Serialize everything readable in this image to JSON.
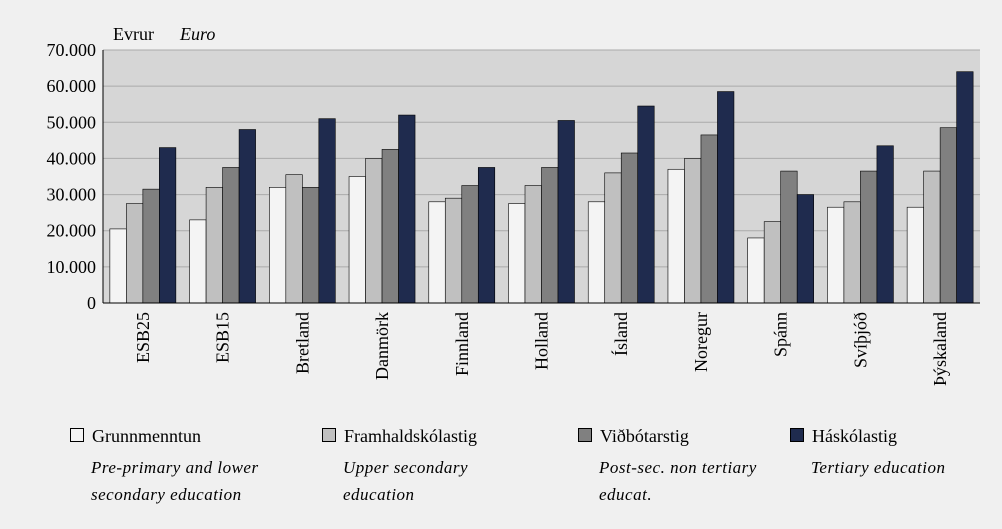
{
  "chart_data": {
    "type": "bar",
    "y_label": "Evrur",
    "y_label_en": "Euro",
    "categories": [
      "ESB25",
      "ESB15",
      "Bretland",
      "Danmörk",
      "Finnland",
      "Holland",
      "Ísland",
      "Noregur",
      "Spánn",
      "Svíþjóð",
      "Þýskaland"
    ],
    "series": [
      {
        "name": "Grunnmenntun",
        "name_en": "Pre-primary and lower secondary education",
        "color": "#f4f4f4",
        "values": [
          20500,
          23000,
          32000,
          35000,
          28000,
          27500,
          28000,
          37000,
          18000,
          26500,
          26500
        ]
      },
      {
        "name": "Framhaldskólastig",
        "name_en": "Upper secondary education",
        "color": "#c0c0c0",
        "values": [
          27500,
          32000,
          35500,
          40000,
          29000,
          32500,
          36000,
          40000,
          22500,
          28000,
          36500
        ]
      },
      {
        "name": "Viðbótarstig",
        "name_en": "Post-sec. non tertiary educat.",
        "color": "#808080",
        "values": [
          31500,
          37500,
          32000,
          42500,
          32500,
          37500,
          41500,
          46500,
          36500,
          36500,
          48500
        ]
      },
      {
        "name": "Háskólastig",
        "name_en": "Tertiary education",
        "color": "#1f2b4e",
        "values": [
          43000,
          48000,
          51000,
          52000,
          37500,
          50500,
          54500,
          58500,
          30000,
          43500,
          64000
        ]
      }
    ],
    "ylim": [
      0,
      70000
    ],
    "yticks": [
      0,
      {
        "value": 10000,
        "label": "10.000"
      },
      {
        "value": 20000,
        "label": "20.000"
      },
      {
        "value": 30000,
        "label": "30.000"
      },
      {
        "value": 40000,
        "label": "40.000"
      },
      {
        "value": 50000,
        "label": "50.000"
      },
      {
        "value": 60000,
        "label": "60.000"
      },
      {
        "value": 70000,
        "label": "70.000"
      }
    ],
    "grid": true
  }
}
